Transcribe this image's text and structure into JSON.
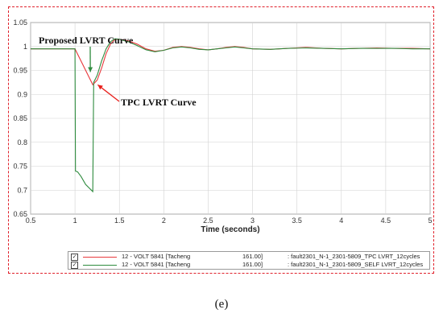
{
  "chart_data": {
    "type": "line",
    "title": "",
    "xlabel": "Time (seconds)",
    "ylabel": "",
    "xlim": [
      0.5,
      5
    ],
    "ylim": [
      0.65,
      1.05
    ],
    "grid": true,
    "xticks": [
      "0.5",
      "1",
      "1.5",
      "2",
      "2.5",
      "3",
      "3.5",
      "4",
      "4.5",
      "5"
    ],
    "yticks": [
      "0.65",
      "0.7",
      "0.75",
      "0.8",
      "0.85",
      "0.9",
      "0.95",
      "1",
      "1.05"
    ],
    "series": [
      {
        "color": "#e8393c",
        "points": [
          [
            0.5,
            0.995
          ],
          [
            1.0,
            0.995
          ],
          [
            1.2,
            0.92
          ],
          [
            1.25,
            0.93
          ],
          [
            1.3,
            0.955
          ],
          [
            1.35,
            0.985
          ],
          [
            1.4,
            1.005
          ],
          [
            1.45,
            1.015
          ],
          [
            1.5,
            1.015
          ],
          [
            1.6,
            1.012
          ],
          [
            1.7,
            1.005
          ],
          [
            1.8,
            0.995
          ],
          [
            1.9,
            0.99
          ],
          [
            2.0,
            0.992
          ],
          [
            2.1,
            0.998
          ],
          [
            2.2,
            1.0
          ],
          [
            2.3,
            0.998
          ],
          [
            2.4,
            0.995
          ],
          [
            2.5,
            0.993
          ],
          [
            2.6,
            0.995
          ],
          [
            2.7,
            0.998
          ],
          [
            2.8,
            1.0
          ],
          [
            2.9,
            0.998
          ],
          [
            3.0,
            0.995
          ],
          [
            3.2,
            0.994
          ],
          [
            3.4,
            0.996
          ],
          [
            3.6,
            0.998
          ],
          [
            3.8,
            0.996
          ],
          [
            4.0,
            0.995
          ],
          [
            4.2,
            0.996
          ],
          [
            4.4,
            0.997
          ],
          [
            4.6,
            0.996
          ],
          [
            4.8,
            0.996
          ],
          [
            5.0,
            0.995
          ]
        ]
      },
      {
        "color": "#2e8b3e",
        "points": [
          [
            0.5,
            0.995
          ],
          [
            1.0,
            0.995
          ],
          [
            1.005,
            0.74
          ],
          [
            1.03,
            0.738
          ],
          [
            1.07,
            0.728
          ],
          [
            1.12,
            0.712
          ],
          [
            1.2,
            0.697
          ],
          [
            1.21,
            0.925
          ],
          [
            1.25,
            0.94
          ],
          [
            1.3,
            0.97
          ],
          [
            1.35,
            0.995
          ],
          [
            1.4,
            1.01
          ],
          [
            1.45,
            1.016
          ],
          [
            1.5,
            1.015
          ],
          [
            1.6,
            1.01
          ],
          [
            1.7,
            1.002
          ],
          [
            1.8,
            0.993
          ],
          [
            1.9,
            0.989
          ],
          [
            2.0,
            0.992
          ],
          [
            2.1,
            0.997
          ],
          [
            2.2,
            0.999
          ],
          [
            2.3,
            0.997
          ],
          [
            2.4,
            0.994
          ],
          [
            2.5,
            0.993
          ],
          [
            2.6,
            0.995
          ],
          [
            2.7,
            0.997
          ],
          [
            2.8,
            0.999
          ],
          [
            2.9,
            0.997
          ],
          [
            3.0,
            0.995
          ],
          [
            3.2,
            0.994
          ],
          [
            3.4,
            0.996
          ],
          [
            3.6,
            0.997
          ],
          [
            3.8,
            0.996
          ],
          [
            4.0,
            0.995
          ],
          [
            4.2,
            0.996
          ],
          [
            4.4,
            0.996
          ],
          [
            4.6,
            0.996
          ],
          [
            4.8,
            0.995
          ],
          [
            5.0,
            0.995
          ]
        ]
      }
    ],
    "annotations": [
      {
        "text": "Proposed LVRT Curve",
        "color": "#2e8b3e",
        "arrow_to": [
          1.2,
          0.94
        ]
      },
      {
        "text": "TPC LVRT Curve",
        "color": "#e8201c",
        "arrow_to": [
          1.22,
          0.925
        ]
      }
    ]
  },
  "legend": [
    {
      "check": "✓",
      "label": "12 - VOLT   5841  [Tacheng",
      "bus": "161.00]",
      "desc": ": fault2301_N-1_2301-5809_TPC LVRT_12cycles",
      "color": "#e8393c"
    },
    {
      "check": "✓",
      "label": "12 - VOLT   5841  [Tacheng",
      "bus": "161.00]",
      "desc": ": fault2301_N-1_2301-5809_SELF LVRT_12cycles",
      "color": "#2e8b3e"
    }
  ],
  "caption": "(e)"
}
